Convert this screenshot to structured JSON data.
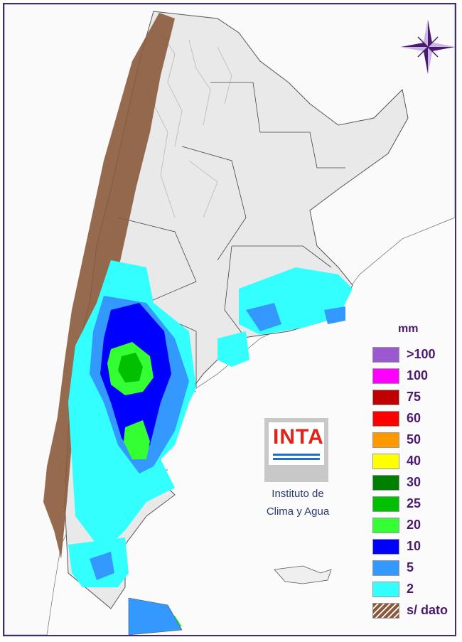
{
  "legend": {
    "title": "mm",
    "items": [
      {
        "label": ">100",
        "color": "#9b59d0"
      },
      {
        "label": "100",
        "color": "#ff00ff"
      },
      {
        "label": "75",
        "color": "#c00000"
      },
      {
        "label": "60",
        "color": "#ff0000"
      },
      {
        "label": "50",
        "color": "#ff9900"
      },
      {
        "label": "40",
        "color": "#ffff00"
      },
      {
        "label": "30",
        "color": "#008000"
      },
      {
        "label": "25",
        "color": "#00c000"
      },
      {
        "label": "20",
        "color": "#33ff33"
      },
      {
        "label": "10",
        "color": "#0000ff"
      },
      {
        "label": "5",
        "color": "#3399ff"
      },
      {
        "label": "2",
        "color": "#33ffff"
      },
      {
        "label": "s/ dato",
        "color": "#8b5a3c"
      }
    ]
  },
  "logo": {
    "text": "INTA"
  },
  "institute": {
    "line1": "Instituto de",
    "line2": "Clima y Agua"
  },
  "compass": {
    "icon": "compass-rose-icon"
  }
}
